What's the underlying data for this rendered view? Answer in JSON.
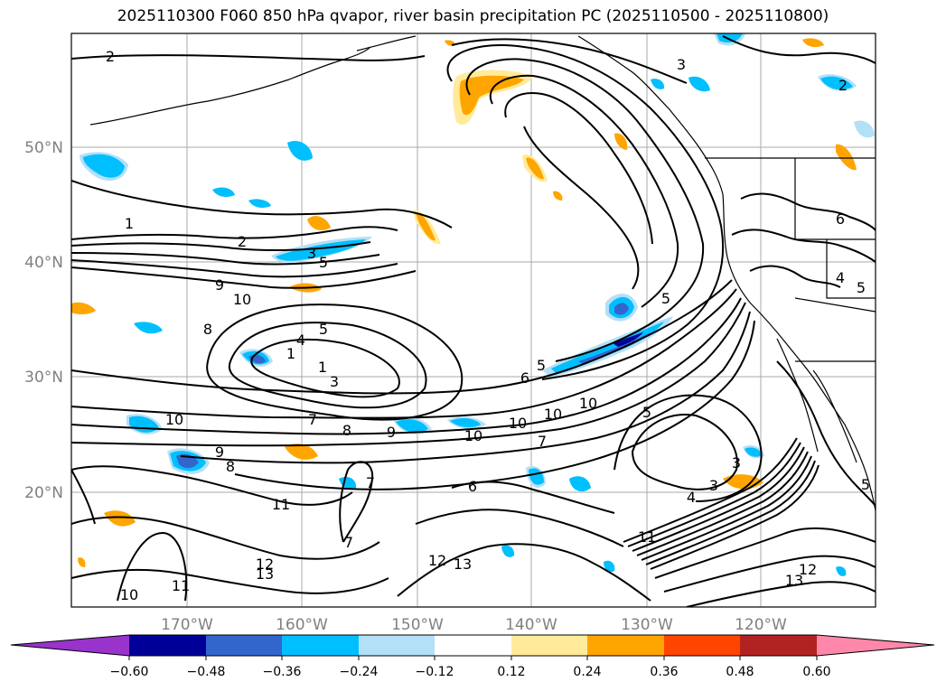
{
  "title": "2025110300 F060 850 hPa qvapor, river basin precipitation PC (2025110500 - 2025110800)",
  "lat_ticks": [
    "50°N",
    "40°N",
    "30°N",
    "20°N"
  ],
  "lon_ticks": [
    "170°W",
    "160°W",
    "150°W",
    "140°W",
    "130°W",
    "120°W"
  ],
  "colorbar": {
    "colors": [
      "#9933cc",
      "#000099",
      "#3366cc",
      "#00bfff",
      "#b3e0f7",
      "#ffffff",
      "#ffeb99",
      "#ffa500",
      "#ff4500",
      "#b22222",
      "#ff88aa"
    ],
    "labels": [
      "−0.60",
      "−0.48",
      "−0.36",
      "−0.24",
      "−0.12",
      "0.12",
      "0.24",
      "0.36",
      "0.48",
      "0.60"
    ]
  },
  "contour_labels": [
    "2",
    "3",
    "2",
    "1",
    "2",
    "3",
    "5",
    "9",
    "10",
    "8",
    "5",
    "4",
    "1",
    "3",
    "1",
    "6",
    "5",
    "10",
    "7",
    "8",
    "9",
    "10",
    "10",
    "10",
    "10",
    "7",
    "5",
    "5",
    "6",
    "4",
    "5",
    "9",
    "8",
    "11",
    "7",
    "7",
    "6",
    "4",
    "3",
    "3",
    "12",
    "13",
    "12",
    "13",
    "10",
    "11",
    "11",
    "12",
    "13",
    "5"
  ],
  "precip_colors": {
    "pos1": "#ffeb99",
    "pos2": "#ffa500",
    "neg1": "#b3e0f7",
    "neg2": "#00bfff",
    "neg3": "#3366cc",
    "neg4": "#000099"
  }
}
